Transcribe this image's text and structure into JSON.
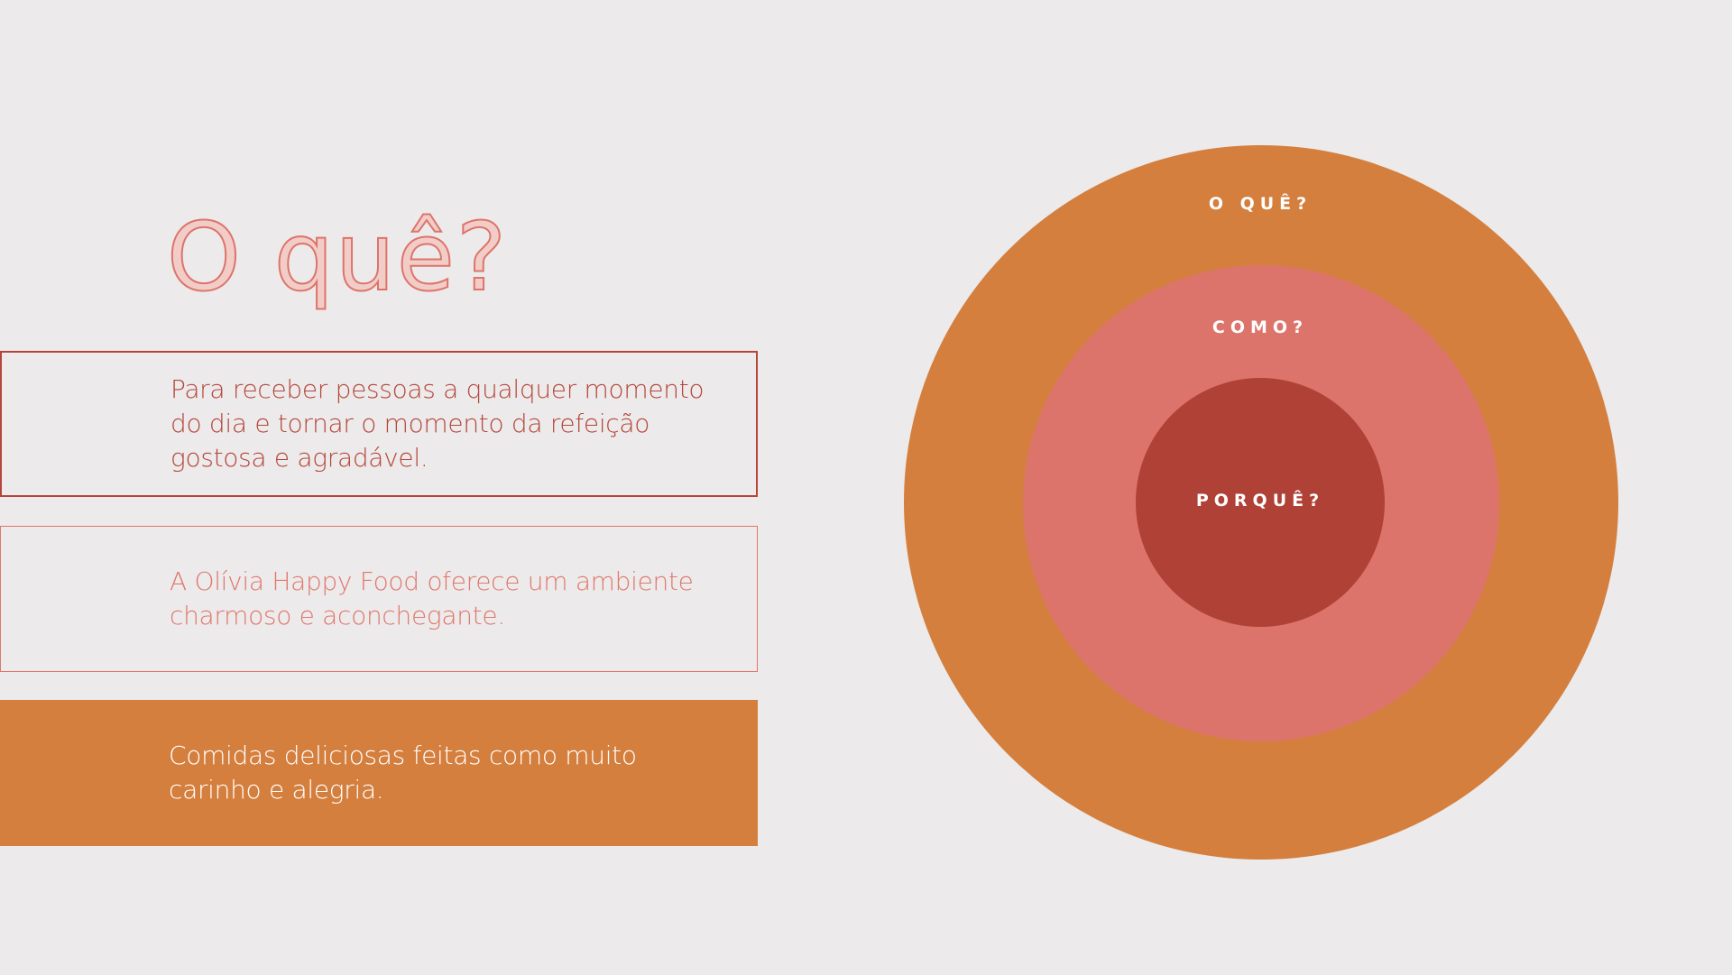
{
  "title": "O quê?",
  "boxes": [
    {
      "text": "Para receber pessoas a qualquer momento do dia e tornar o momento da refeição gostosa e agradável."
    },
    {
      "text": "A Olívia Happy Food oferece um ambiente charmoso e aconchegante."
    },
    {
      "text": "Comidas deliciosas feitas como muito carinho e alegria."
    }
  ],
  "circles": {
    "outer_label": "O QUÊ?",
    "middle_label": "COMO?",
    "inner_label": "PORQUÊ?"
  },
  "colors": {
    "background": "#ECEAEA",
    "orange": "#D47F3E",
    "pink": "#DD746B",
    "dark_red": "#B04136"
  }
}
